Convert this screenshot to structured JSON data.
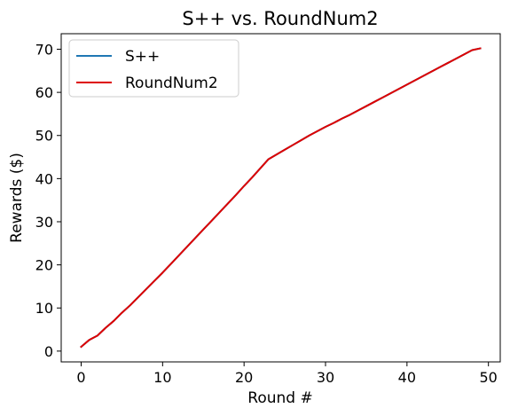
{
  "chart_data": {
    "type": "line",
    "title": "S++ vs. RoundNum2",
    "xlabel": "Round #",
    "ylabel": "Rewards ($)",
    "xlim": [
      -2.45,
      51.45
    ],
    "ylim": [
      -2.5,
      73.6
    ],
    "xticks": [
      0,
      10,
      20,
      30,
      40,
      50
    ],
    "yticks": [
      0,
      10,
      20,
      30,
      40,
      50,
      60,
      70
    ],
    "legend_position": "upper-left",
    "x": [
      0,
      1,
      2,
      3,
      4,
      5,
      6,
      7,
      8,
      9,
      10,
      11,
      12,
      13,
      14,
      15,
      16,
      17,
      18,
      19,
      20,
      21,
      22,
      23,
      24,
      25,
      26,
      27,
      28,
      29,
      30,
      31,
      32,
      33,
      34,
      35,
      36,
      37,
      38,
      39,
      40,
      41,
      42,
      43,
      44,
      45,
      46,
      47,
      48,
      49
    ],
    "series": [
      {
        "name": "S++",
        "color": "#1f77b4",
        "values": [
          1.0,
          2.6,
          3.6,
          5.4,
          7.0,
          8.9,
          10.6,
          12.5,
          14.4,
          16.3,
          18.2,
          20.2,
          22.2,
          24.2,
          26.2,
          28.2,
          30.2,
          32.2,
          34.2,
          36.2,
          38.3,
          40.3,
          42.4,
          44.5,
          45.6,
          46.7,
          47.8,
          48.9,
          50.0,
          51.0,
          52.0,
          52.9,
          53.9,
          54.8,
          55.8,
          56.8,
          57.8,
          58.8,
          59.8,
          60.8,
          61.8,
          62.8,
          63.8,
          64.8,
          65.8,
          66.8,
          67.8,
          68.8,
          69.8,
          70.2
        ]
      },
      {
        "name": "RoundNum2",
        "color": "#dd0000",
        "values": [
          1.0,
          2.6,
          3.6,
          5.4,
          7.0,
          8.9,
          10.6,
          12.5,
          14.4,
          16.3,
          18.2,
          20.2,
          22.2,
          24.2,
          26.2,
          28.2,
          30.2,
          32.2,
          34.2,
          36.2,
          38.3,
          40.3,
          42.4,
          44.5,
          45.6,
          46.7,
          47.8,
          48.9,
          50.0,
          51.0,
          52.0,
          52.9,
          53.9,
          54.8,
          55.8,
          56.8,
          57.8,
          58.8,
          59.8,
          60.8,
          61.8,
          62.8,
          63.8,
          64.8,
          65.8,
          66.8,
          67.8,
          68.8,
          69.8,
          70.2
        ]
      }
    ]
  }
}
